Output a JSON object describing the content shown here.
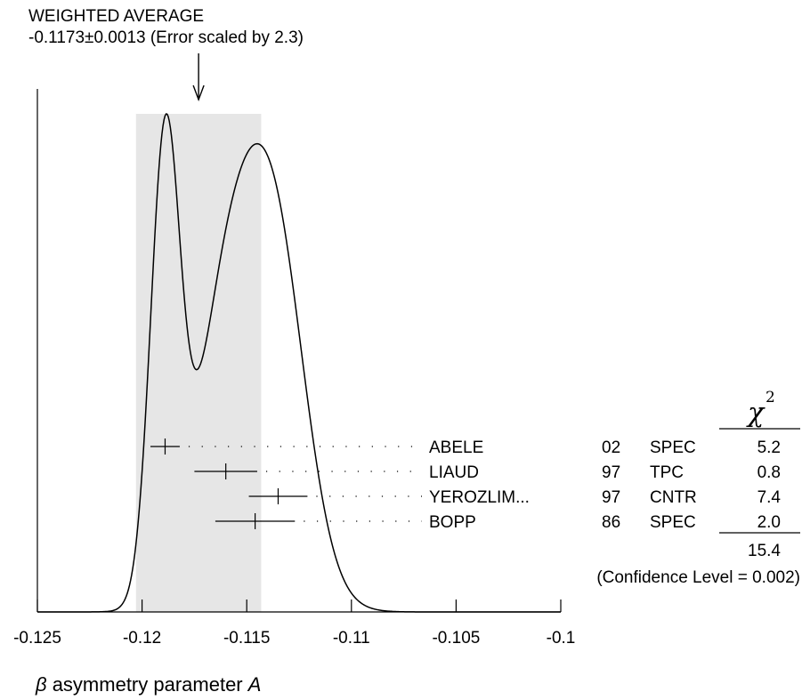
{
  "chart_data": {
    "type": "ideogram",
    "header_title": "WEIGHTED AVERAGE",
    "header_value": "-0.1173±0.0013 (Error scaled by 2.3)",
    "weighted_average": {
      "value": -0.1173,
      "error": 0.0013,
      "scale_factor": 2.3
    },
    "xlabel_symbol": "β",
    "xlabel_text": " asymmetry parameter ",
    "xlabel_var": "A",
    "xlim": [
      -0.125,
      -0.1
    ],
    "ticks": [
      -0.125,
      -0.12,
      -0.115,
      -0.11,
      -0.105,
      -0.1
    ],
    "tick_labels": [
      "-0.125",
      "-0.12",
      "-0.115",
      "-0.11",
      "-0.105",
      "-0.1"
    ],
    "chi2_symbol": "χ",
    "chi2_power": "2",
    "measurements": [
      {
        "author": "ABELE",
        "year": "02",
        "technique": "SPEC",
        "chi2": "5.2",
        "value": -0.1189,
        "error": 0.0007
      },
      {
        "author": "LIAUD",
        "year": "97",
        "technique": "TPC",
        "chi2": "0.8",
        "value": -0.116,
        "error": 0.0015
      },
      {
        "author": "YEROZLIM...",
        "year": "97",
        "technique": "CNTR",
        "chi2": "7.4",
        "value": -0.1135,
        "error": 0.0014
      },
      {
        "author": "BOPP",
        "year": "86",
        "technique": "SPEC",
        "chi2": "2.0",
        "value": -0.1146,
        "error": 0.0019
      }
    ],
    "chi2_total": "15.4",
    "confidence_level": "(Confidence Level = 0.002)",
    "colors": {
      "band": "#e6e6e6",
      "ink": "#000000"
    }
  }
}
